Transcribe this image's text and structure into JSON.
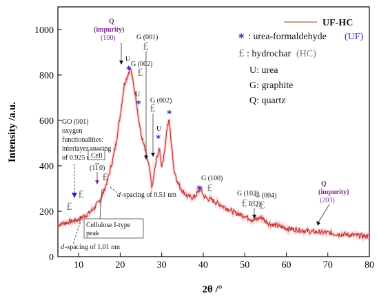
{
  "chart_data": {
    "type": "line",
    "xlabel": "2θ /°",
    "ylabel": "Intensity /a.u.",
    "xlim": [
      5,
      80
    ],
    "ylim": [
      0,
      1100
    ],
    "xticks": [
      10,
      20,
      30,
      40,
      50,
      60,
      70,
      80
    ],
    "yticks": [
      0,
      200,
      400,
      600,
      800,
      1000
    ],
    "grid": false,
    "legend_position": "top-right",
    "series": [
      {
        "name": "UF-HC",
        "color": "#8b1a1a",
        "points": [
          [
            5,
            140
          ],
          [
            6,
            145
          ],
          [
            7,
            150
          ],
          [
            8,
            155
          ],
          [
            9,
            158
          ],
          [
            10,
            165
          ],
          [
            11,
            175
          ],
          [
            12,
            185
          ],
          [
            13,
            200
          ],
          [
            14,
            220
          ],
          [
            15,
            245
          ],
          [
            16,
            285
          ],
          [
            17,
            340
          ],
          [
            18,
            410
          ],
          [
            19,
            500
          ],
          [
            20,
            620
          ],
          [
            21,
            760
          ],
          [
            22,
            810
          ],
          [
            22.5,
            830
          ],
          [
            23,
            780
          ],
          [
            23.8,
            700
          ],
          [
            24.5,
            600
          ],
          [
            25,
            540
          ],
          [
            26,
            470
          ],
          [
            27,
            390
          ],
          [
            27.7,
            300
          ],
          [
            28.2,
            370
          ],
          [
            29,
            450
          ],
          [
            29.5,
            470
          ],
          [
            30,
            400
          ],
          [
            30.5,
            440
          ],
          [
            31.3,
            570
          ],
          [
            31.8,
            600
          ],
          [
            32.3,
            500
          ],
          [
            33,
            380
          ],
          [
            34,
            320
          ],
          [
            35,
            290
          ],
          [
            36,
            270
          ],
          [
            37,
            260
          ],
          [
            38,
            265
          ],
          [
            39,
            290
          ],
          [
            39.5,
            300
          ],
          [
            40,
            270
          ],
          [
            41,
            255
          ],
          [
            42,
            250
          ],
          [
            43,
            240
          ],
          [
            44,
            230
          ],
          [
            45,
            220
          ],
          [
            46,
            210
          ],
          [
            47,
            200
          ],
          [
            48,
            190
          ],
          [
            49,
            185
          ],
          [
            50,
            180
          ],
          [
            51,
            170
          ],
          [
            52,
            160
          ],
          [
            53,
            165
          ],
          [
            54,
            175
          ],
          [
            55,
            155
          ],
          [
            56,
            145
          ],
          [
            57,
            140
          ],
          [
            58,
            135
          ],
          [
            60,
            125
          ],
          [
            62,
            120
          ],
          [
            64,
            115
          ],
          [
            66,
            110
          ],
          [
            68,
            108
          ],
          [
            70,
            105
          ],
          [
            72,
            100
          ],
          [
            74,
            98
          ],
          [
            76,
            95
          ],
          [
            78,
            92
          ],
          [
            80,
            90
          ]
        ]
      }
    ],
    "legend": {
      "line_label": "UF-HC",
      "star_symbol": "*",
      "star_text": ": urea-formaldehyde",
      "star_abbr": "(UF)",
      "pound_symbol": "£",
      "pound_text": ": hydrochar",
      "pound_abbr": "(HC)",
      "u_text": "U: urea",
      "g_text": "G: graphite",
      "q_text": "Q: quartz"
    },
    "annotations": {
      "q100_label": "Q",
      "q100_sub1": "(impurity)",
      "q100_sub2": "(100)",
      "g001": "G (001)",
      "g002a": "G (002)",
      "g002b": "G (002)",
      "u1": "U",
      "u2": "U",
      "u3": "U",
      "go_line1": "GO (001)",
      "go_line2": "oxygen",
      "go_line3": "functionalities:",
      "go_line4": "interlayer spacing",
      "go_line5": "of 0.925 nm",
      "cell_box": "Cell",
      "cell_miller": "(1",
      "cell_bar": "1",
      "cell_end": "0)",
      "d051_d": "d",
      "d051_rest": "-spacing of 0.51 nm",
      "cellulose_line1": "Cellulose I-type",
      "cellulose_line2": "peak",
      "d101_d": "d",
      "d101_rest": "-spacing of 1.01 nm",
      "g100": "G (100)",
      "g102": "G (102)",
      "g004": "G (004)",
      "iq": "I(Q)",
      "q203_label": "Q",
      "q203_sub1": "(impurity)",
      "q203_sub2": "(203)",
      "star": "*",
      "pound": "£"
    }
  }
}
